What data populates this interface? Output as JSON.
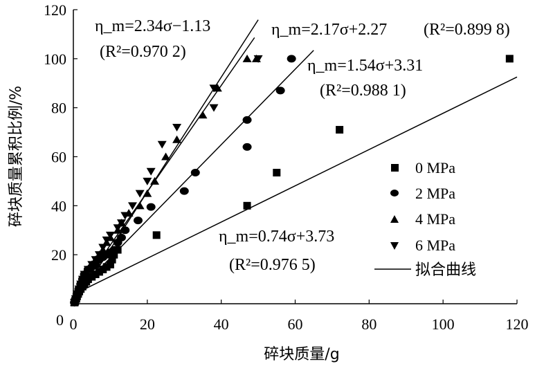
{
  "chart_data": {
    "type": "scatter",
    "xlabel": "碎块质量/g",
    "ylabel": "碎块质量累积比例/%",
    "xlim": [
      0,
      120
    ],
    "ylim": [
      0,
      120
    ],
    "x_ticks": [
      "0",
      "20",
      "40",
      "60",
      "80",
      "100",
      "120"
    ],
    "y_ticks": [
      "20",
      "40",
      "60",
      "80",
      "100",
      "120"
    ],
    "series": [
      {
        "name": "0 MPa",
        "marker": "square",
        "points": [
          [
            0.3,
            0.5
          ],
          [
            0.5,
            1
          ],
          [
            0.8,
            2
          ],
          [
            1,
            3
          ],
          [
            1.3,
            4
          ],
          [
            1.6,
            5
          ],
          [
            2,
            6
          ],
          [
            2.5,
            7
          ],
          [
            3,
            8
          ],
          [
            3.5,
            9
          ],
          [
            4,
            10
          ],
          [
            5,
            11
          ],
          [
            6,
            12
          ],
          [
            7,
            13
          ],
          [
            8,
            14
          ],
          [
            9,
            15
          ],
          [
            10,
            16
          ],
          [
            10.5,
            18
          ],
          [
            11,
            20
          ],
          [
            12,
            22
          ],
          [
            22.5,
            28
          ],
          [
            47,
            40
          ],
          [
            55,
            53.5
          ],
          [
            72,
            71
          ],
          [
            118,
            100
          ]
        ]
      },
      {
        "name": "2 MPa",
        "marker": "circle",
        "points": [
          [
            0.3,
            0.5
          ],
          [
            0.6,
            2
          ],
          [
            1,
            4
          ],
          [
            1.5,
            6
          ],
          [
            2,
            8
          ],
          [
            2.5,
            10
          ],
          [
            3,
            12
          ],
          [
            4,
            14
          ],
          [
            5,
            15
          ],
          [
            6,
            16
          ],
          [
            7,
            18
          ],
          [
            8,
            19
          ],
          [
            9,
            20
          ],
          [
            10,
            21
          ],
          [
            11,
            22
          ],
          [
            12,
            25
          ],
          [
            13,
            27
          ],
          [
            14,
            30
          ],
          [
            17.5,
            34
          ],
          [
            21,
            39.5
          ],
          [
            30,
            46
          ],
          [
            33,
            53.5
          ],
          [
            47,
            64
          ],
          [
            47,
            75
          ],
          [
            56,
            87
          ],
          [
            59,
            100
          ]
        ]
      },
      {
        "name": "4 MPa",
        "marker": "triangle-up",
        "points": [
          [
            0.3,
            0.5
          ],
          [
            0.6,
            2
          ],
          [
            1,
            4
          ],
          [
            1.5,
            6
          ],
          [
            2,
            8
          ],
          [
            2.5,
            10
          ],
          [
            3,
            12
          ],
          [
            4,
            14
          ],
          [
            5,
            16
          ],
          [
            6,
            18
          ],
          [
            7,
            20
          ],
          [
            8,
            22
          ],
          [
            9,
            25
          ],
          [
            10,
            27
          ],
          [
            12,
            30
          ],
          [
            13,
            33
          ],
          [
            15,
            37
          ],
          [
            18,
            40
          ],
          [
            20,
            45
          ],
          [
            22,
            50
          ],
          [
            25,
            60
          ],
          [
            28,
            67
          ],
          [
            35,
            77
          ],
          [
            39,
            88
          ],
          [
            47,
            100
          ],
          [
            49.5,
            100
          ]
        ]
      },
      {
        "name": "6 MPa",
        "marker": "triangle-down",
        "points": [
          [
            0.3,
            0.5
          ],
          [
            0.6,
            2
          ],
          [
            1,
            4
          ],
          [
            1.5,
            6
          ],
          [
            2,
            8
          ],
          [
            2.5,
            10
          ],
          [
            3,
            12
          ],
          [
            4,
            14
          ],
          [
            5,
            16
          ],
          [
            6,
            18
          ],
          [
            7,
            20
          ],
          [
            8,
            23
          ],
          [
            9,
            26
          ],
          [
            10,
            28
          ],
          [
            12,
            31
          ],
          [
            13,
            33
          ],
          [
            14,
            36
          ],
          [
            16,
            40
          ],
          [
            18,
            45
          ],
          [
            20,
            50
          ],
          [
            21,
            54
          ],
          [
            24,
            65
          ],
          [
            28,
            72
          ],
          [
            38,
            88
          ],
          [
            38,
            80
          ],
          [
            50,
            100
          ]
        ]
      }
    ],
    "fit_lines": [
      {
        "series": "0 MPa",
        "slope": 0.74,
        "intercept": 3.73,
        "equation": "η_m=0.74σ+3.73",
        "r2": "(R²=0.976 5)",
        "x_range": [
          0,
          120
        ]
      },
      {
        "series": "2 MPa",
        "slope": 1.54,
        "intercept": 3.31,
        "equation": "η_m=1.54σ+3.31",
        "r2": "(R²=0.988 1)",
        "x_range": [
          0,
          65
        ]
      },
      {
        "series": "4 MPa",
        "slope": 2.17,
        "intercept": 2.27,
        "equation": "η_m=2.17σ+2.27",
        "r2": "(R²=0.899 8)",
        "x_range": [
          0,
          49
        ]
      },
      {
        "series": "6 MPa",
        "slope": 2.34,
        "intercept": -1.13,
        "equation": "η_m=2.34σ−1.13",
        "r2": "(R²=0.970 2)",
        "x_range": [
          0,
          50
        ]
      }
    ],
    "legend": {
      "position": "right",
      "entries": [
        "0 MPa",
        "2 MPa",
        "4 MPa",
        "6 MPa",
        "拟合曲线"
      ]
    },
    "grid": false
  }
}
